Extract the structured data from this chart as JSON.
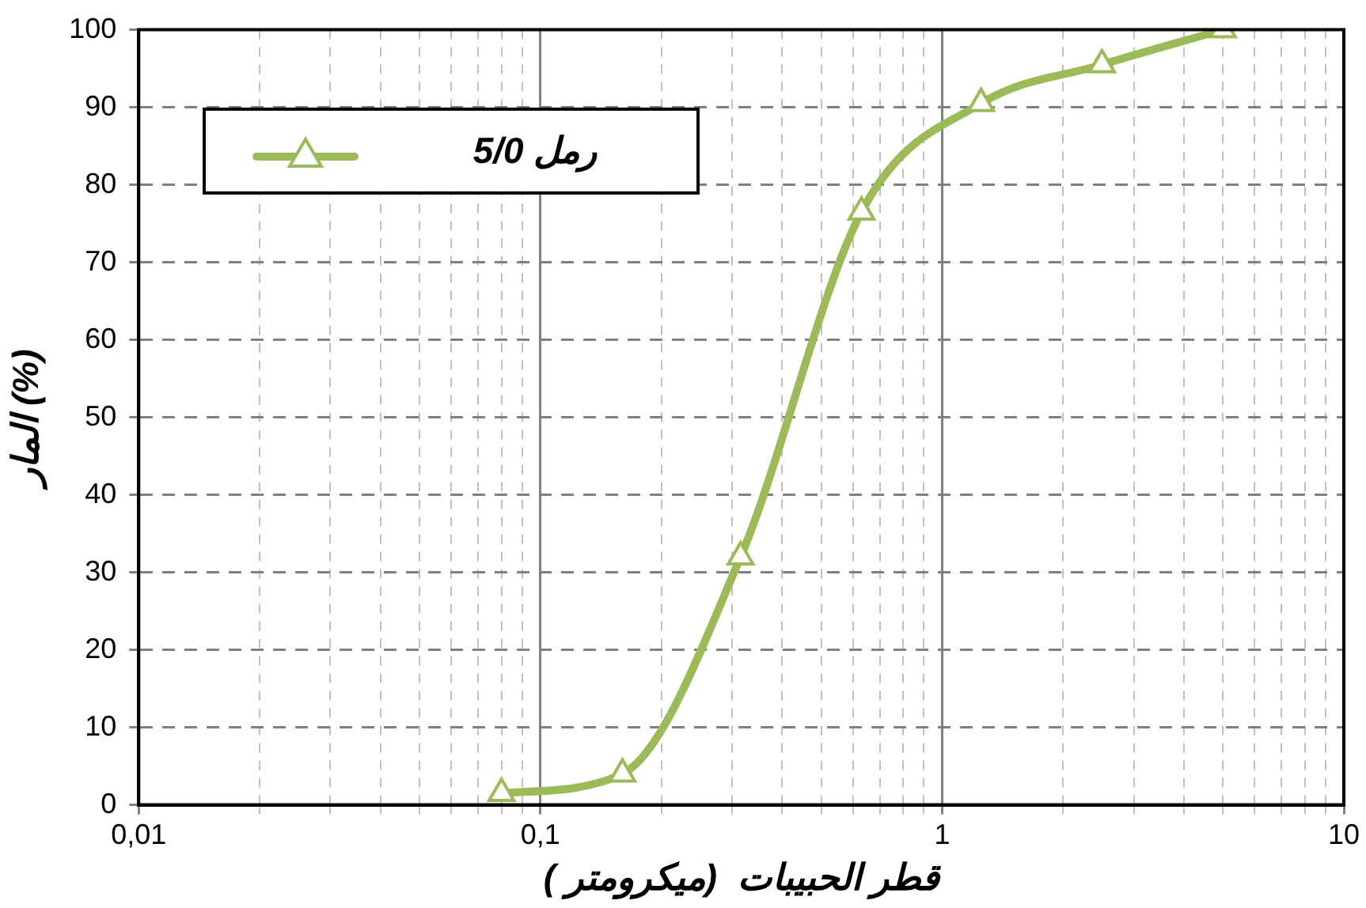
{
  "chart_data": {
    "type": "line",
    "xlabel": "قطر الحبيبات  (ميكرومتر )",
    "ylabel": "المار (%)",
    "log": "x",
    "x": [
      0.08,
      0.16,
      0.315,
      0.63,
      1.25,
      2.5,
      5
    ],
    "series": [
      {
        "name": "رمل 5/0",
        "color": "#9bbb59",
        "values": [
          1.5,
          4,
          32,
          76.5,
          90.5,
          95.5,
          100
        ]
      }
    ],
    "xlim": [
      0.01,
      10
    ],
    "xticks": [
      {
        "value": 0.01,
        "label": "0,01"
      },
      {
        "value": 0.02,
        "label": null
      },
      {
        "value": 0.03,
        "label": null
      },
      {
        "value": 0.04,
        "label": null
      },
      {
        "value": 0.05,
        "label": null
      },
      {
        "value": 0.06,
        "label": null
      },
      {
        "value": 0.07,
        "label": null
      },
      {
        "value": 0.08,
        "label": null
      },
      {
        "value": 0.09,
        "label": null
      },
      {
        "value": 0.1,
        "label": "0,1"
      },
      {
        "value": 0.2,
        "label": null
      },
      {
        "value": 0.3,
        "label": null
      },
      {
        "value": 0.4,
        "label": null
      },
      {
        "value": 0.5,
        "label": null
      },
      {
        "value": 0.6,
        "label": null
      },
      {
        "value": 0.7,
        "label": null
      },
      {
        "value": 0.8,
        "label": null
      },
      {
        "value": 0.9,
        "label": null
      },
      {
        "value": 1,
        "label": "1"
      },
      {
        "value": 2,
        "label": null
      },
      {
        "value": 3,
        "label": null
      },
      {
        "value": 4,
        "label": null
      },
      {
        "value": 5,
        "label": null
      },
      {
        "value": 6,
        "label": null
      },
      {
        "value": 7,
        "label": null
      },
      {
        "value": 8,
        "label": null
      },
      {
        "value": 9,
        "label": null
      },
      {
        "value": 10,
        "label": "10"
      }
    ],
    "ylim": [
      0,
      100
    ],
    "yticks": [
      0,
      10,
      20,
      30,
      40,
      50,
      60,
      70,
      80,
      90,
      100
    ],
    "grid": true,
    "legend": "top left",
    "marker": "triangle",
    "line_style": "solid"
  }
}
